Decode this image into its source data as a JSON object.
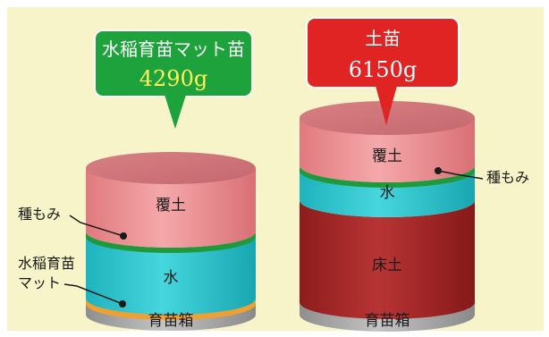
{
  "left_column": {
    "callout_title": "水稲育苗マット苗",
    "callout_weight": "4290g",
    "layers": {
      "top": "覆土",
      "middle": "水",
      "bottom": "育苗箱"
    },
    "side_label_seed": "種もみ",
    "side_label_mat_line1": "水稲育苗",
    "side_label_mat_line2": "マット"
  },
  "right_column": {
    "callout_title": "土苗",
    "callout_weight": "6150g",
    "layers": {
      "top": "覆土",
      "middle": "水",
      "lower": "床土",
      "bottom": "育苗箱"
    },
    "side_label_seed": "種もみ"
  },
  "colors": {
    "background": "#f6f4c8",
    "soil_cover": "#f0989a",
    "water": "#33c8d0",
    "floor_soil": "#b02a2a",
    "tray": "#a8a8a8",
    "seed_line": "#1e9a3c",
    "mat_line": "#f0a030",
    "callout_green": "#1ea33c",
    "callout_red": "#e02424",
    "weight_green_text": "#fff35a",
    "weight_red_text": "#ffffff"
  }
}
